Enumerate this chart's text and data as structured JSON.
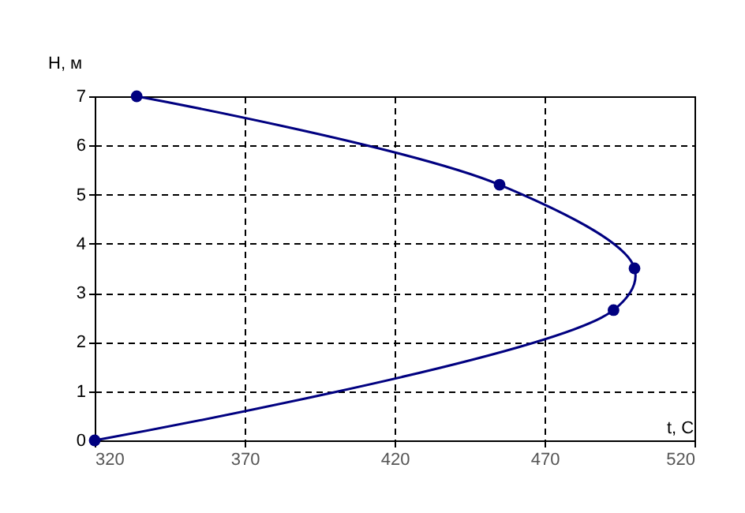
{
  "chart_data": {
    "type": "line",
    "xlabel": "t, С",
    "ylabel": "Н, м",
    "x": [
      320,
      493,
      500,
      455,
      334
    ],
    "series": [
      {
        "color": "#000080",
        "values": [
          0,
          2.65,
          3.5,
          5.2,
          7
        ]
      }
    ],
    "xlim": [
      320,
      520
    ],
    "xticks": [
      320,
      370,
      420,
      470,
      520
    ],
    "ylim": [
      0,
      7
    ],
    "yticks": [
      0,
      1,
      2,
      3,
      4,
      5,
      6,
      7
    ],
    "grid": true,
    "marker": "circle",
    "line_style": "solid"
  }
}
